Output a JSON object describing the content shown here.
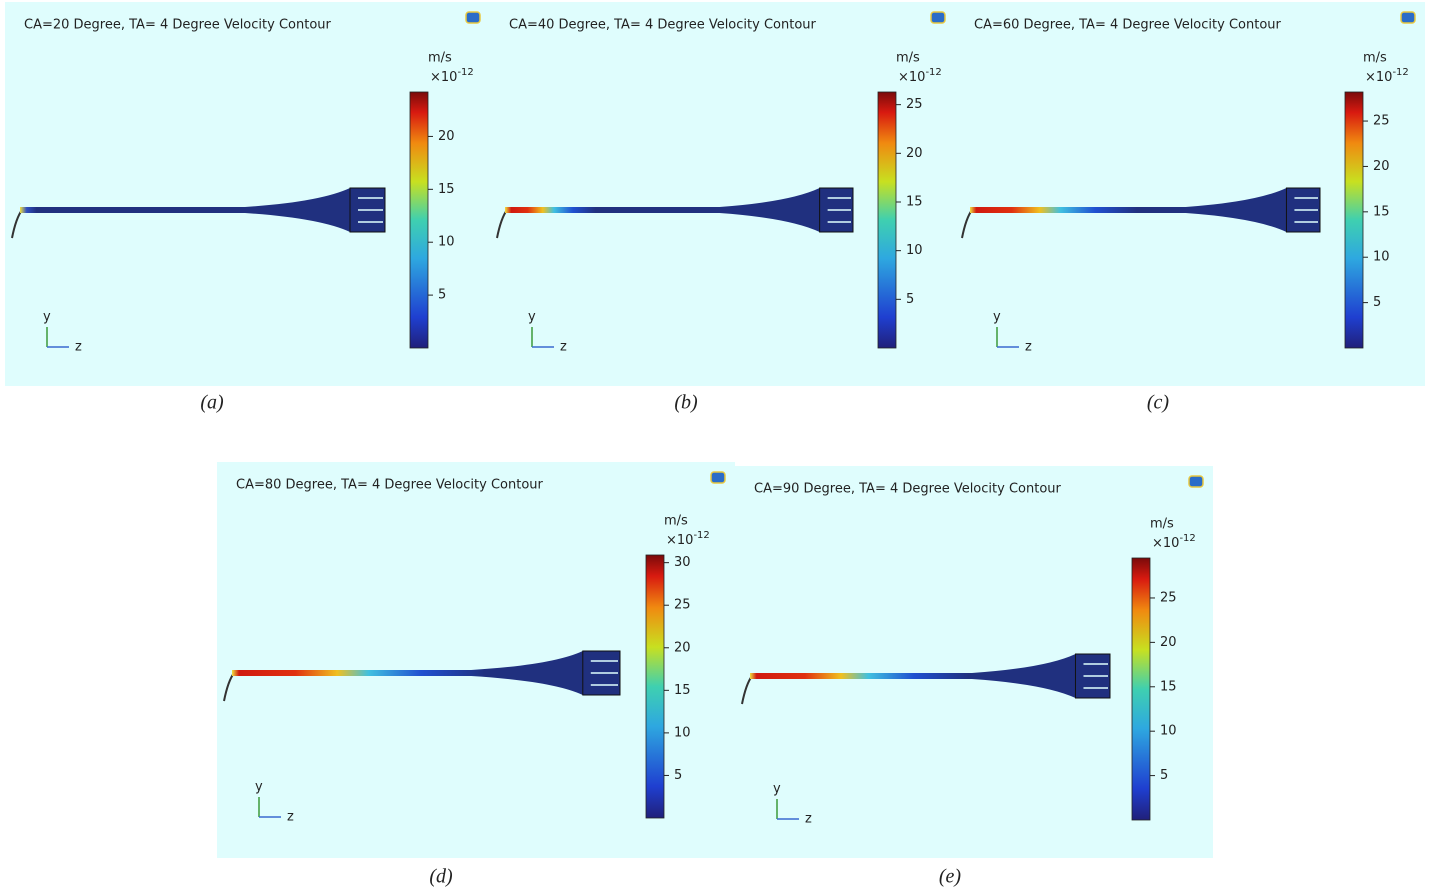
{
  "panels": [
    {
      "title": "CA=20 Degree, TA= 4 Degree  Velocity Contour",
      "unit": "m/s",
      "multiplier": "×10",
      "exponent": "-12",
      "clim": [
        0,
        24.2
      ],
      "ticks": [
        5,
        10,
        15,
        20
      ],
      "axis_labels": [
        "y",
        "z"
      ],
      "caption": "(a)"
    },
    {
      "title": "CA=40 Degree, TA= 4 Degree  Velocity Contour",
      "unit": "m/s",
      "multiplier": "×10",
      "exponent": "-12",
      "clim": [
        0,
        26.3
      ],
      "ticks": [
        5,
        10,
        15,
        20,
        25
      ],
      "axis_labels": [
        "y",
        "z"
      ],
      "caption": "(b)"
    },
    {
      "title": "CA=60 Degree, TA= 4 Degree  Velocity Contour",
      "unit": "m/s",
      "multiplier": "×10",
      "exponent": "-12",
      "clim": [
        0,
        28.2
      ],
      "ticks": [
        5,
        10,
        15,
        20,
        25
      ],
      "axis_labels": [
        "y",
        "z"
      ],
      "caption": "(c)"
    },
    {
      "title": "CA=80 Degree, TA= 4 Degree  Velocity Contour",
      "unit": "m/s",
      "multiplier": "×10",
      "exponent": "-12",
      "clim": [
        0,
        30.9
      ],
      "ticks": [
        5,
        10,
        15,
        20,
        25,
        30
      ],
      "axis_labels": [
        "y",
        "z"
      ],
      "caption": "(d)"
    },
    {
      "title": "CA=90 Degree, TA= 4 Degree  Velocity Contour",
      "unit": "m/s",
      "multiplier": "×10",
      "exponent": "-12",
      "clim": [
        0,
        29.5
      ],
      "ticks": [
        5,
        10,
        15,
        20,
        25
      ],
      "axis_labels": [
        "y",
        "z"
      ],
      "caption": "(e)"
    }
  ]
}
